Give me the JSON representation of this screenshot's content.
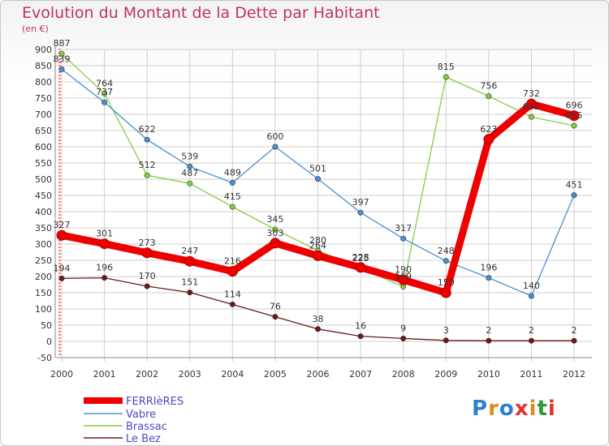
{
  "header": {
    "title": "Evolution du Montant de la Dette par Habitant",
    "subtitle": "(en €)"
  },
  "colors": {
    "title": "#c0306a",
    "grid": "#cfcfcf",
    "axis_tick": "#ff0000"
  },
  "logo": {
    "letters": [
      "P",
      "r",
      "o",
      "x",
      "i",
      "t",
      "i"
    ],
    "colors": [
      "#2f7fd0",
      "#e08a1e",
      "#2f7fd0",
      "#e2352a",
      "#e08a1e",
      "#2a9a3a",
      "#e2352a"
    ]
  },
  "chart_data": {
    "type": "line",
    "title": "Evolution du Montant de la Dette par Habitant",
    "ylabel": "(en €)",
    "x": [
      "2000",
      "2001",
      "2002",
      "2003",
      "2004",
      "2005",
      "2006",
      "2007",
      "2008",
      "2009",
      "2010",
      "2011",
      "2012"
    ],
    "ylim": [
      -50,
      900
    ],
    "yticks": [
      "-50",
      "0",
      "50",
      "100",
      "150",
      "200",
      "250",
      "300",
      "350",
      "400",
      "450",
      "500",
      "550",
      "600",
      "650",
      "700",
      "750",
      "800",
      "850",
      "900"
    ],
    "grid": true,
    "legend": "bottom-left",
    "series": [
      {
        "name": "FERRIèRES",
        "color": "#ee0000",
        "values": [
          327,
          301,
          273,
          247,
          216,
          303,
          264,
          228,
          190,
          150,
          623,
          732,
          696
        ],
        "labels": [
          "327",
          "301",
          "273",
          "247",
          "216",
          "303",
          "264",
          "228",
          "190",
          "150",
          "623",
          "732",
          "696"
        ]
      },
      {
        "name": "Vabre",
        "color": "#4a90d0",
        "values": [
          839,
          737,
          622,
          539,
          489,
          600,
          501,
          397,
          317,
          248,
          196,
          140,
          451
        ],
        "labels": [
          "839",
          "737",
          "622",
          "539",
          "489",
          "600",
          "501",
          "397",
          "317",
          "248",
          "196",
          "140",
          "451"
        ]
      },
      {
        "name": "Brassac",
        "color": "#88cc44",
        "values": [
          887,
          764,
          512,
          487,
          415,
          345,
          280,
          225,
          169,
          815,
          756,
          692,
          665
        ],
        "labels": [
          "887",
          "764",
          "512",
          "487",
          "415",
          "345",
          "280",
          "225",
          "169",
          "815",
          "756",
          "692",
          "665"
        ]
      },
      {
        "name": "Le Bez",
        "color": "#6b1a1a",
        "values": [
          194,
          196,
          170,
          151,
          114,
          76,
          38,
          16,
          9,
          3,
          2,
          2,
          2
        ],
        "labels": [
          "194",
          "196",
          "170",
          "151",
          "114",
          "76",
          "38",
          "16",
          "9",
          "3",
          "2",
          "2",
          "2"
        ]
      }
    ]
  }
}
